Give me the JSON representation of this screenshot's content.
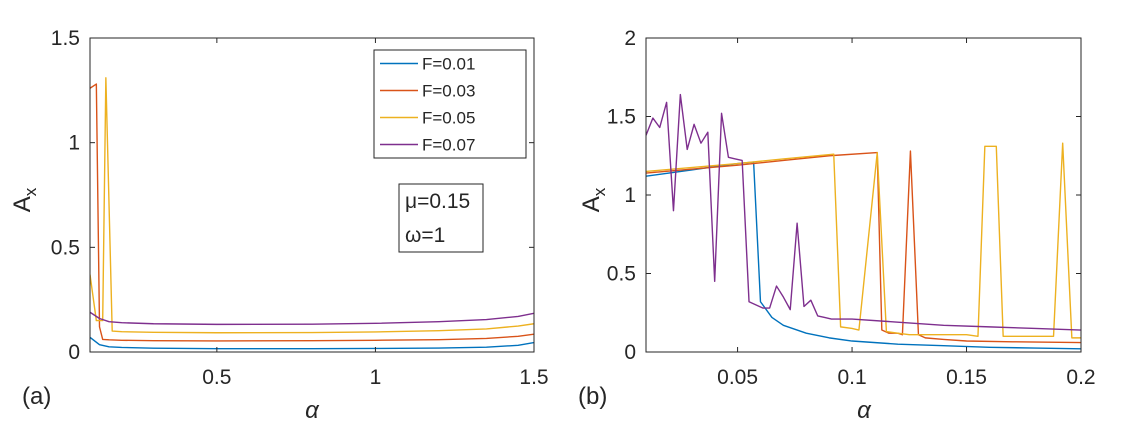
{
  "figure": {
    "panel_a_label": "(a)",
    "panel_b_label": "(b)"
  },
  "colors": {
    "F=0.01": "#0072BD",
    "F=0.03": "#D95319",
    "F=0.05": "#EDB120",
    "F=0.07": "#7E2F8E",
    "axis": "#262626"
  },
  "chart_data": [
    {
      "type": "line",
      "panel": "(a)",
      "xlabel": "α",
      "ylabel": "A",
      "ylabel_subscript": "x",
      "xlim": [
        0.1,
        1.5
      ],
      "ylim": [
        0,
        1.5
      ],
      "xticks": [
        0.5,
        1,
        1.5
      ],
      "xtick_labels": [
        "0.5",
        "1",
        "1.5"
      ],
      "yticks": [
        0,
        0.5,
        1,
        1.5
      ],
      "ytick_labels": [
        "0",
        "0.5",
        "1",
        "1.5"
      ],
      "legend": [
        "F=0.01",
        "F=0.03",
        "F=0.05",
        "F=0.07"
      ],
      "legend_position": "top-right",
      "annotations": [
        "μ=0.15",
        "ω=1"
      ],
      "series": [
        {
          "name": "F=0.01",
          "x": [
            0.1,
            0.13,
            0.16,
            0.2,
            0.3,
            0.5,
            0.8,
            1.0,
            1.2,
            1.35,
            1.45,
            1.5
          ],
          "values": [
            0.07,
            0.035,
            0.025,
            0.022,
            0.018,
            0.016,
            0.016,
            0.017,
            0.019,
            0.023,
            0.032,
            0.045
          ]
        },
        {
          "name": "F=0.03",
          "x": [
            0.1,
            0.12,
            0.13,
            0.14,
            0.16,
            0.2,
            0.3,
            0.5,
            0.8,
            1.0,
            1.2,
            1.35,
            1.45,
            1.5
          ],
          "values": [
            1.26,
            1.28,
            0.12,
            0.06,
            0.058,
            0.056,
            0.054,
            0.053,
            0.054,
            0.056,
            0.059,
            0.065,
            0.075,
            0.085
          ]
        },
        {
          "name": "F=0.05",
          "x": [
            0.1,
            0.12,
            0.14,
            0.15,
            0.17,
            0.2,
            0.3,
            0.5,
            0.8,
            1.0,
            1.2,
            1.35,
            1.45,
            1.5
          ],
          "values": [
            0.37,
            0.15,
            0.15,
            1.31,
            0.1,
            0.097,
            0.094,
            0.092,
            0.093,
            0.096,
            0.102,
            0.11,
            0.124,
            0.135
          ]
        },
        {
          "name": "F=0.07",
          "x": [
            0.1,
            0.13,
            0.16,
            0.2,
            0.3,
            0.5,
            0.8,
            1.0,
            1.2,
            1.35,
            1.45,
            1.5
          ],
          "values": [
            0.19,
            0.16,
            0.145,
            0.14,
            0.135,
            0.132,
            0.133,
            0.137,
            0.145,
            0.155,
            0.17,
            0.185
          ]
        }
      ]
    },
    {
      "type": "line",
      "panel": "(b)",
      "xlabel": "α",
      "ylabel": "A",
      "ylabel_subscript": "x",
      "xlim": [
        0.01,
        0.2
      ],
      "ylim": [
        0,
        2
      ],
      "xticks": [
        0.05,
        0.1,
        0.15,
        0.2
      ],
      "xtick_labels": [
        "0.05",
        "0.1",
        "0.15",
        "0.2"
      ],
      "yticks": [
        0,
        0.5,
        1,
        1.5,
        2
      ],
      "ytick_labels": [
        "0",
        "0.5",
        "1",
        "1.5",
        "2"
      ],
      "series": [
        {
          "name": "F=0.01",
          "x": [
            0.01,
            0.02,
            0.03,
            0.04,
            0.05,
            0.057,
            0.06,
            0.065,
            0.07,
            0.08,
            0.09,
            0.1,
            0.12,
            0.14,
            0.16,
            0.18,
            0.2
          ],
          "values": [
            1.12,
            1.14,
            1.16,
            1.18,
            1.2,
            1.21,
            0.32,
            0.22,
            0.17,
            0.12,
            0.09,
            0.07,
            0.05,
            0.04,
            0.03,
            0.025,
            0.02
          ]
        },
        {
          "name": "F=0.03",
          "x": [
            0.01,
            0.05,
            0.07,
            0.09,
            0.111,
            0.113,
            0.116,
            0.12,
            0.122,
            0.1255,
            0.129,
            0.132,
            0.14,
            0.15,
            0.17,
            0.2
          ],
          "values": [
            1.14,
            1.19,
            1.22,
            1.25,
            1.27,
            0.14,
            0.12,
            0.12,
            0.11,
            1.28,
            0.11,
            0.09,
            0.08,
            0.07,
            0.065,
            0.06
          ]
        },
        {
          "name": "F=0.05",
          "x": [
            0.01,
            0.05,
            0.07,
            0.092,
            0.095,
            0.1,
            0.103,
            0.111,
            0.115,
            0.12,
            0.125,
            0.15,
            0.155,
            0.158,
            0.163,
            0.166,
            0.175,
            0.18,
            0.188,
            0.192,
            0.196,
            0.2
          ],
          "values": [
            1.15,
            1.2,
            1.23,
            1.26,
            0.16,
            0.15,
            0.14,
            1.27,
            0.13,
            0.12,
            0.11,
            0.11,
            0.1,
            1.31,
            1.31,
            0.1,
            0.1,
            0.1,
            0.1,
            1.33,
            0.09,
            0.09
          ]
        },
        {
          "name": "F=0.07",
          "x": [
            0.01,
            0.013,
            0.016,
            0.019,
            0.022,
            0.025,
            0.028,
            0.031,
            0.034,
            0.037,
            0.04,
            0.043,
            0.046,
            0.049,
            0.052,
            0.055,
            0.058,
            0.061,
            0.064,
            0.067,
            0.07,
            0.073,
            0.076,
            0.079,
            0.082,
            0.085,
            0.088,
            0.091,
            0.1,
            0.12,
            0.14,
            0.16,
            0.18,
            0.2
          ],
          "values": [
            1.38,
            1.49,
            1.43,
            1.59,
            0.9,
            1.64,
            1.29,
            1.45,
            1.33,
            1.4,
            0.45,
            1.52,
            1.24,
            1.23,
            1.22,
            0.32,
            0.3,
            0.28,
            0.28,
            0.42,
            0.35,
            0.27,
            0.82,
            0.29,
            0.33,
            0.23,
            0.22,
            0.21,
            0.21,
            0.19,
            0.17,
            0.16,
            0.15,
            0.14
          ]
        }
      ]
    }
  ]
}
